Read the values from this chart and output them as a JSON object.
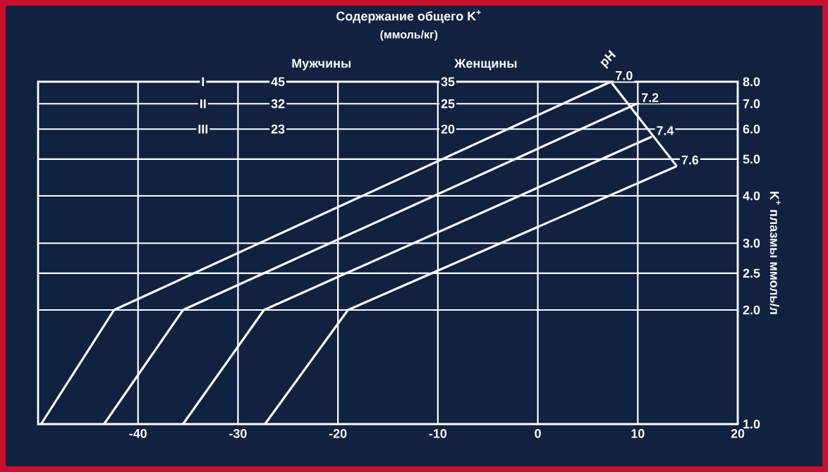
{
  "chart_data": {
    "type": "line",
    "title": "Содержание общего K$^{+}$",
    "subtitle": "(ммоль/кг)",
    "ylabel": "K$^{+}$ плазмы ммоль/л",
    "log": "y",
    "grid": true,
    "xlim": [
      -50,
      20
    ],
    "xticks": [
      -40,
      -30,
      -20,
      -10,
      0,
      10,
      20
    ],
    "ylim": [
      1,
      8
    ],
    "yticks": [
      {
        "value": 1,
        "label": "1.0"
      },
      {
        "value": 2,
        "label": "2.0"
      },
      2.5,
      {
        "value": 3,
        "label": "3.0"
      },
      {
        "value": 4,
        "label": "4.0"
      },
      {
        "value": 5,
        "label": "5.0"
      },
      {
        "value": 6,
        "label": "6.0"
      },
      {
        "value": 7,
        "label": "7.0"
      },
      {
        "value": 8,
        "label": "8.0"
      }
    ],
    "series": [
      {
        "name": "7.0",
        "color": "#ffffff",
        "x": [
          -49.7,
          -42.4,
          7.3
        ],
        "values": [
          1.0,
          2.0,
          8.0
        ]
      },
      {
        "name": "7.2",
        "color": "#ffffff",
        "x": [
          -43.4,
          -35.5,
          9.9
        ],
        "values": [
          1.0,
          2.0,
          7.0
        ]
      },
      {
        "name": "7.4",
        "color": "#ffffff",
        "x": [
          -35.5,
          -27.4,
          11.4
        ],
        "values": [
          1.0,
          2.0,
          5.73
        ]
      },
      {
        "name": "7.6",
        "color": "#ffffff",
        "x": [
          -27.3,
          -19.0,
          13.9
        ],
        "values": [
          1.0,
          2.0,
          4.79
        ]
      },
      {
        "color": "#ffffff",
        "x": [
          7.3,
          13.9
        ],
        "values": [
          8.0,
          4.79
        ]
      }
    ],
    "annotations": [
      "Мужчины",
      "Женщины",
      "pH",
      {
        "text": "I",
        "x": -33.5,
        "y": 8
      },
      {
        "text": "II",
        "x": -33.5,
        "y": 7
      },
      {
        "text": "III",
        "x": -33.5,
        "y": 6
      },
      {
        "text": "45",
        "x": -26,
        "y": 8
      },
      {
        "text": "32",
        "x": -26,
        "y": 7
      },
      {
        "text": "23",
        "x": -26,
        "y": 6
      },
      {
        "text": "35",
        "x": -9,
        "y": 8
      },
      {
        "text": "25",
        "x": -9,
        "y": 7
      },
      {
        "text": "20",
        "x": -9,
        "y": 6
      }
    ]
  }
}
